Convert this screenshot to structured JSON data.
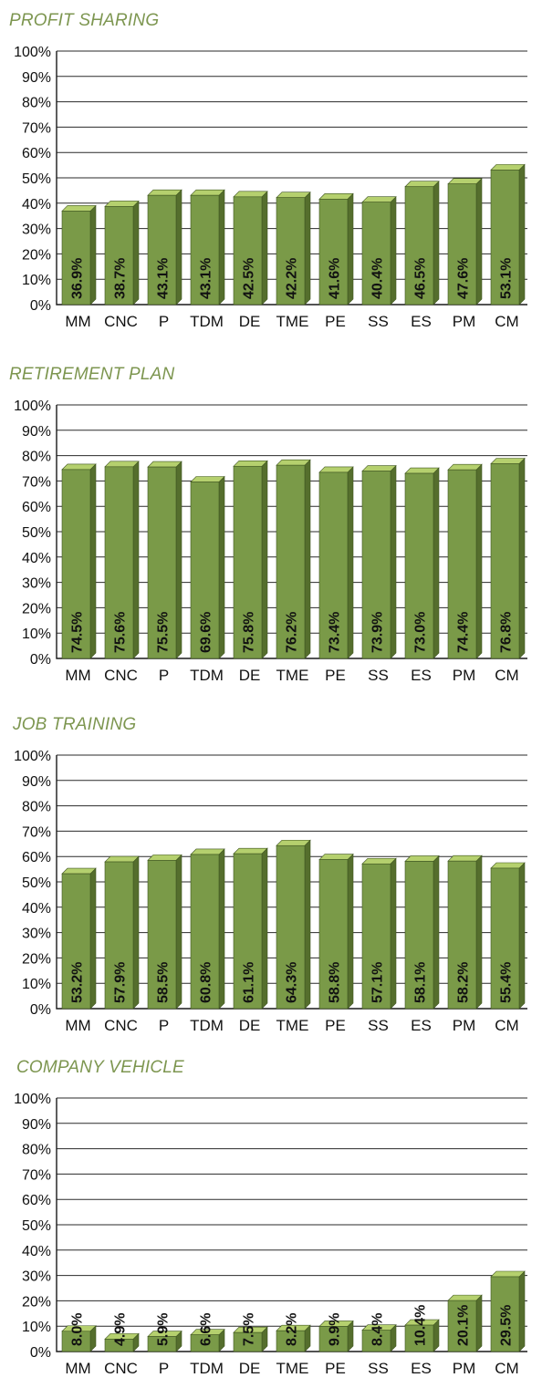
{
  "chart_data": [
    {
      "type": "bar",
      "title": "PROFIT SHARING",
      "categories": [
        "MM",
        "CNC",
        "P",
        "TDM",
        "DE",
        "TME",
        "PE",
        "SS",
        "ES",
        "PM",
        "CM"
      ],
      "values": [
        36.9,
        38.7,
        43.1,
        43.1,
        42.5,
        42.2,
        41.6,
        40.4,
        46.5,
        47.6,
        53.1
      ],
      "value_labels": [
        "36.9%",
        "38.7%",
        "43.1%",
        "43.1%",
        "42.5%",
        "42.2%",
        "41.6%",
        "40.4%",
        "46.5%",
        "47.6%",
        "53.1%"
      ],
      "yticks": [
        "0%",
        "10%",
        "20%",
        "30%",
        "40%",
        "50%",
        "60%",
        "70%",
        "80%",
        "90%",
        "100%"
      ],
      "ylim": [
        0,
        100
      ],
      "grid": true,
      "legend": "none"
    },
    {
      "type": "bar",
      "title": "RETIREMENT PLAN",
      "categories": [
        "MM",
        "CNC",
        "P",
        "TDM",
        "DE",
        "TME",
        "PE",
        "SS",
        "ES",
        "PM",
        "CM"
      ],
      "values": [
        74.5,
        75.6,
        75.5,
        69.6,
        75.8,
        76.2,
        73.4,
        73.9,
        73.0,
        74.4,
        76.8
      ],
      "value_labels": [
        "74.5%",
        "75.6%",
        "75.5%",
        "69.6%",
        "75.8%",
        "76.2%",
        "73.4%",
        "73.9%",
        "73.0%",
        "74.4%",
        "76.8%"
      ],
      "yticks": [
        "0%",
        "10%",
        "20%",
        "30%",
        "40%",
        "50%",
        "60%",
        "70%",
        "80%",
        "90%",
        "100%"
      ],
      "ylim": [
        0,
        100
      ],
      "grid": true,
      "legend": "none"
    },
    {
      "type": "bar",
      "title": "JOB TRAINING",
      "categories": [
        "MM",
        "CNC",
        "P",
        "TDM",
        "DE",
        "TME",
        "PE",
        "SS",
        "ES",
        "PM",
        "CM"
      ],
      "values": [
        53.2,
        57.9,
        58.5,
        60.8,
        61.1,
        64.3,
        58.8,
        57.1,
        58.1,
        58.2,
        55.4
      ],
      "value_labels": [
        "53.2%",
        "57.9%",
        "58.5%",
        "60.8%",
        "61.1%",
        "64.3%",
        "58.8%",
        "57.1%",
        "58.1%",
        "58.2%",
        "55.4%"
      ],
      "yticks": [
        "0%",
        "10%",
        "20%",
        "30%",
        "40%",
        "50%",
        "60%",
        "70%",
        "80%",
        "90%",
        "100%"
      ],
      "ylim": [
        0,
        100
      ],
      "grid": true,
      "legend": "none"
    },
    {
      "type": "bar",
      "title": "COMPANY VEHICLE",
      "categories": [
        "MM",
        "CNC",
        "P",
        "TDM",
        "DE",
        "TME",
        "PE",
        "SS",
        "ES",
        "PM",
        "CM"
      ],
      "values": [
        8.0,
        4.9,
        5.9,
        6.6,
        7.5,
        8.2,
        9.9,
        8.4,
        10.4,
        20.1,
        29.5
      ],
      "value_labels": [
        "8.0%",
        "4.9%",
        "5.9%",
        "6.6%",
        "7.5%",
        "8.2%",
        "9.9%",
        "8.4%",
        "10.4%",
        "20.1%",
        "29.5%"
      ],
      "yticks": [
        "0%",
        "10%",
        "20%",
        "30%",
        "40%",
        "50%",
        "60%",
        "70%",
        "80%",
        "90%",
        "100%"
      ],
      "ylim": [
        0,
        100
      ],
      "grid": true,
      "legend": "none"
    }
  ],
  "colors": {
    "title": "#7d9650",
    "bar_front": "#7a9a48",
    "bar_top": "#b5d06e",
    "bar_side": "#556e2d",
    "bar_outline": "#3f5520",
    "grid": "#2a2a2a",
    "text": "#111111"
  }
}
